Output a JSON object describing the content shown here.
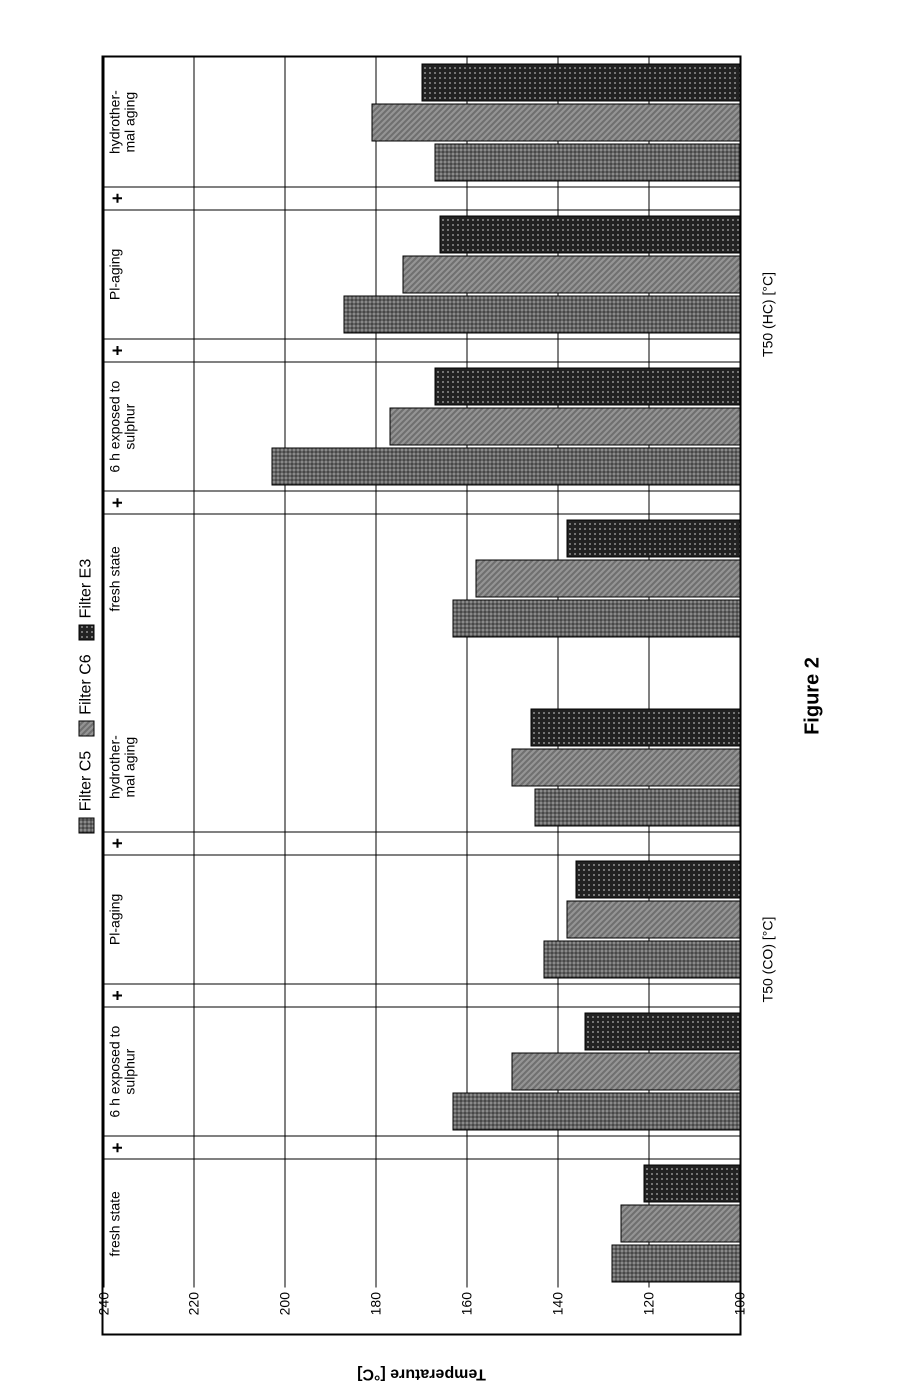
{
  "caption": "Figure 2",
  "chart": {
    "type": "grouped-bar",
    "ylabel": "Temperature [°C]",
    "ylim": [
      100,
      240
    ],
    "ytick_step": 20,
    "background_color": "#ffffff",
    "grid_color": "#000000",
    "legend": {
      "items": [
        {
          "key": "c5",
          "label": "Filter C5",
          "pattern": "pattern-c5"
        },
        {
          "key": "c6",
          "label": "Filter C6",
          "pattern": "pattern-c6"
        },
        {
          "key": "e3",
          "label": "Filter E3",
          "pattern": "pattern-e3"
        }
      ]
    },
    "series_colors": {
      "c5": "#8a8a8a",
      "c6": "#707070",
      "e3": "#222222"
    },
    "sections": [
      {
        "label": "T50 (CO) [°C]"
      },
      {
        "label": "T50 (HC) [°C]"
      }
    ],
    "groups": [
      {
        "section": 0,
        "leading_plus": false,
        "label": "fresh state",
        "values": {
          "c5": 128,
          "c6": 126,
          "e3": 121
        }
      },
      {
        "section": 0,
        "leading_plus": true,
        "label": "6 h exposed to sulphur",
        "values": {
          "c5": 163,
          "c6": 150,
          "e3": 134
        }
      },
      {
        "section": 0,
        "leading_plus": true,
        "label": "Pl-aging",
        "values": {
          "c5": 143,
          "c6": 138,
          "e3": 136
        }
      },
      {
        "section": 0,
        "leading_plus": true,
        "label": "hydrother-\nmal aging",
        "values": {
          "c5": 145,
          "c6": 150,
          "e3": 146
        }
      },
      {
        "section": 1,
        "leading_plus": false,
        "label": "fresh state",
        "values": {
          "c5": 163,
          "c6": 158,
          "e3": 138
        }
      },
      {
        "section": 1,
        "leading_plus": true,
        "label": "6 h exposed to sulphur",
        "values": {
          "c5": 203,
          "c6": 177,
          "e3": 167
        }
      },
      {
        "section": 1,
        "leading_plus": true,
        "label": "Pl-aging",
        "values": {
          "c5": 187,
          "c6": 174,
          "e3": 166
        }
      },
      {
        "section": 1,
        "leading_plus": true,
        "label": "hydrother-\nmal aging",
        "values": {
          "c5": 167,
          "c6": 181,
          "e3": 170
        }
      }
    ]
  }
}
